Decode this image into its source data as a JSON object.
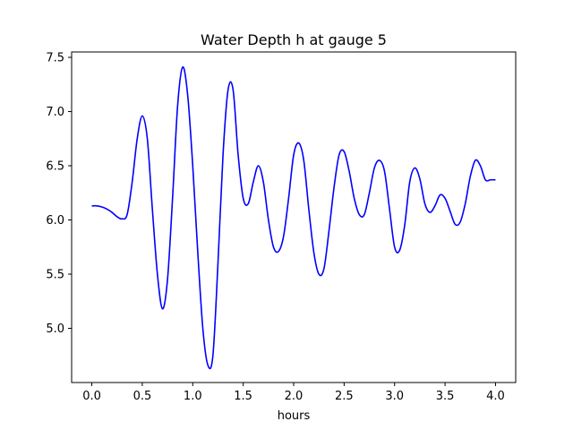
{
  "chart_data": {
    "type": "line",
    "title": "Water Depth h at gauge 5",
    "xlabel": "hours",
    "ylabel": "",
    "xlim": [
      -0.2,
      4.2
    ],
    "ylim": [
      4.5,
      7.55
    ],
    "xticks": [
      0.0,
      0.5,
      1.0,
      1.5,
      2.0,
      2.5,
      3.0,
      3.5,
      4.0
    ],
    "xtick_labels": [
      "0.0",
      "0.5",
      "1.0",
      "1.5",
      "2.0",
      "2.5",
      "3.0",
      "3.5",
      "4.0"
    ],
    "yticks": [
      5.0,
      5.5,
      6.0,
      6.5,
      7.0,
      7.5
    ],
    "ytick_labels": [
      "5.0",
      "5.5",
      "6.0",
      "6.5",
      "7.0",
      "7.5"
    ],
    "grid": false,
    "colors": {
      "line": "#0000ff",
      "axes": "#000000"
    },
    "series": [
      {
        "name": "",
        "x": [
          0.0,
          0.05,
          0.1,
          0.15,
          0.2,
          0.25,
          0.3,
          0.35,
          0.4,
          0.45,
          0.5,
          0.55,
          0.6,
          0.65,
          0.7,
          0.75,
          0.8,
          0.85,
          0.9,
          0.95,
          1.0,
          1.05,
          1.1,
          1.15,
          1.2,
          1.25,
          1.3,
          1.35,
          1.4,
          1.45,
          1.5,
          1.55,
          1.6,
          1.65,
          1.7,
          1.75,
          1.8,
          1.85,
          1.9,
          1.95,
          2.0,
          2.05,
          2.1,
          2.15,
          2.2,
          2.25,
          2.3,
          2.35,
          2.4,
          2.45,
          2.5,
          2.55,
          2.6,
          2.65,
          2.7,
          2.75,
          2.8,
          2.85,
          2.9,
          2.95,
          3.0,
          3.05,
          3.1,
          3.15,
          3.2,
          3.25,
          3.3,
          3.35,
          3.4,
          3.45,
          3.5,
          3.55,
          3.6,
          3.65,
          3.7,
          3.75,
          3.8,
          3.85,
          3.9,
          3.95,
          4.0
        ],
        "y": [
          6.13,
          6.13,
          6.12,
          6.1,
          6.07,
          6.03,
          6.01,
          6.05,
          6.35,
          6.75,
          6.96,
          6.75,
          6.1,
          5.5,
          5.18,
          5.45,
          6.2,
          7.05,
          7.41,
          7.15,
          6.5,
          5.7,
          5.0,
          4.66,
          4.75,
          5.6,
          6.6,
          7.2,
          7.2,
          6.6,
          6.2,
          6.15,
          6.35,
          6.5,
          6.35,
          6.0,
          5.75,
          5.71,
          5.85,
          6.2,
          6.6,
          6.71,
          6.55,
          6.1,
          5.7,
          5.5,
          5.55,
          5.9,
          6.3,
          6.6,
          6.63,
          6.45,
          6.2,
          6.05,
          6.05,
          6.25,
          6.48,
          6.55,
          6.45,
          6.1,
          5.75,
          5.72,
          5.95,
          6.35,
          6.48,
          6.38,
          6.15,
          6.07,
          6.13,
          6.23,
          6.2,
          6.08,
          5.96,
          5.98,
          6.15,
          6.4,
          6.55,
          6.5,
          6.37,
          6.37,
          6.37
        ]
      }
    ]
  }
}
